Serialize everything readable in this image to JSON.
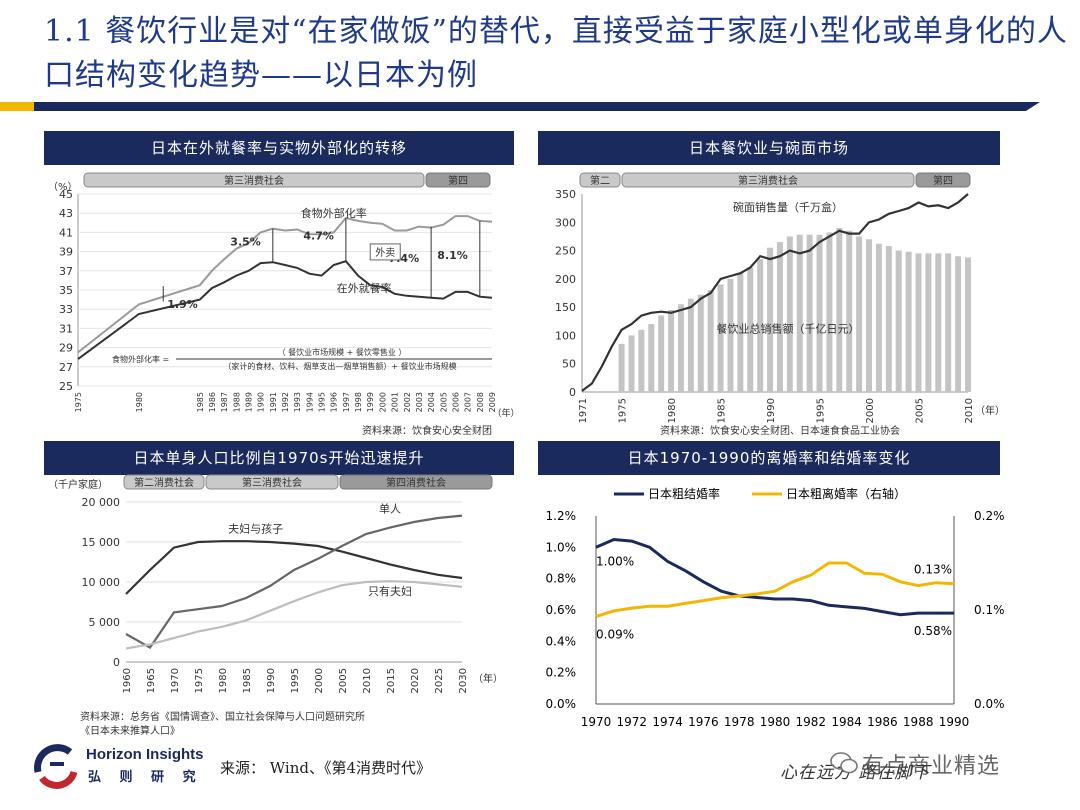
{
  "title": "1.1 餐饮行业是对“在家做饭”的替代，直接受益于家庭小型化或单身化的人口结构变化趋势——以日本为例",
  "colors": {
    "navy": "#1b2a5c",
    "gold": "#f2b705",
    "title_blue": "#1f3a8a"
  },
  "panels": {
    "p1": {
      "heading": "日本在外就餐率与实物外部化的转移"
    },
    "p2": {
      "heading": "日本餐饮业与碗面市场"
    },
    "p3": {
      "heading": "日本单身人口比例自1970s开始迅速提升"
    },
    "p4": {
      "heading": "日本1970-1990的离婚率和结婚率变化"
    }
  },
  "chart_data": [
    {
      "type": "line",
      "title": "日本在外就餐率与实物外部化的转移",
      "era_band": [
        "第三消费社会",
        "第四"
      ],
      "yunit": "（%）",
      "xunit": "（年）",
      "ylim": [
        25,
        45
      ],
      "yticks": [
        25,
        27,
        29,
        31,
        33,
        35,
        37,
        39,
        41,
        43,
        45
      ],
      "x": [
        1975,
        1980,
        1985,
        1986,
        1987,
        1988,
        1989,
        1990,
        1991,
        1992,
        1993,
        1994,
        1995,
        1996,
        1997,
        1998,
        1999,
        2000,
        2001,
        2002,
        2003,
        2004,
        2005,
        2006,
        2007,
        2008,
        2009
      ],
      "series": [
        {
          "name": "食物外部化率",
          "values": [
            28.5,
            33.5,
            35.5,
            37.0,
            38.2,
            39.3,
            39.9,
            41.0,
            41.4,
            41.2,
            41.3,
            40.8,
            40.8,
            41.0,
            42.5,
            42.2,
            42.0,
            41.9,
            41.2,
            41.2,
            41.6,
            41.5,
            41.8,
            42.7,
            42.7,
            42.2,
            42.1
          ]
        },
        {
          "name": "在外就餐率",
          "values": [
            27.8,
            32.5,
            34.0,
            35.2,
            35.8,
            36.5,
            37.0,
            37.8,
            37.9,
            37.6,
            37.3,
            36.7,
            36.5,
            37.6,
            38.0,
            36.5,
            35.5,
            35.3,
            34.6,
            34.4,
            34.3,
            34.2,
            34.1,
            34.8,
            34.8,
            34.3,
            34.2
          ]
        }
      ],
      "gap_labels": [
        "1.9%",
        "3.5%",
        "4.7%",
        "7.4%",
        "8.1%"
      ],
      "callout": "外卖",
      "formula_lines": [
        "食物外部化率 =",
        "（ 餐饮业市场规模 + 餐饮零售业 ）",
        "（家计的食材、饮料、烟草支出—烟草销售额）+ 餐饮业市场规模"
      ],
      "source": "资料来源：饮食安心安全财团"
    },
    {
      "type": "bar+line",
      "title": "日本餐饮业与碗面市场",
      "era_band": [
        "第二",
        "第三消费社会",
        "第四"
      ],
      "xunit": "（年）",
      "ylim": [
        0,
        350
      ],
      "yticks": [
        0,
        50,
        100,
        150,
        200,
        250,
        300,
        350
      ],
      "xtick_labels": [
        "1971",
        "1975",
        "1980",
        "1985",
        "1990",
        "1995",
        "2000",
        "2005",
        "2010"
      ],
      "series": [
        {
          "name": "碗面销售量（千万盒）",
          "x": [
            1971,
            1972,
            1973,
            1974,
            1975,
            1976,
            1977,
            1978,
            1979,
            1980,
            1981,
            1982,
            1983,
            1984,
            1985,
            1986,
            1987,
            1988,
            1989,
            1990,
            1991,
            1992,
            1993,
            1994,
            1995,
            1996,
            1997,
            1998,
            1999,
            2000,
            2001,
            2002,
            2003,
            2004,
            2005,
            2006,
            2007,
            2008,
            2009,
            2010
          ],
          "values": [
            2,
            15,
            45,
            80,
            110,
            120,
            135,
            140,
            142,
            140,
            145,
            150,
            165,
            175,
            200,
            205,
            210,
            220,
            240,
            235,
            240,
            250,
            245,
            250,
            265,
            275,
            285,
            280,
            280,
            300,
            305,
            315,
            320,
            325,
            335,
            328,
            330,
            325,
            335,
            350
          ]
        },
        {
          "name": "餐饮业总销售额（千亿日元）",
          "x": [
            1975,
            1976,
            1977,
            1978,
            1979,
            1980,
            1981,
            1982,
            1983,
            1984,
            1985,
            1986,
            1987,
            1988,
            1989,
            1990,
            1991,
            1992,
            1993,
            1994,
            1995,
            1996,
            1997,
            1998,
            1999,
            2000,
            2001,
            2002,
            2003,
            2004,
            2005,
            2006,
            2007,
            2008,
            2009,
            2010
          ],
          "values": [
            85,
            100,
            110,
            120,
            135,
            145,
            155,
            165,
            172,
            180,
            190,
            200,
            210,
            220,
            235,
            255,
            265,
            275,
            278,
            278,
            278,
            282,
            290,
            285,
            275,
            270,
            262,
            258,
            250,
            248,
            245,
            245,
            245,
            245,
            240,
            238
          ]
        }
      ],
      "source": "资料来源：饮食安心安全财团、日本速食食品工业协会"
    },
    {
      "type": "line",
      "title": "日本单身人口比例自1970s开始迅速提升",
      "era_band": [
        "第二消费社会",
        "第三消费社会",
        "第四消费社会"
      ],
      "yunit": "（千户家庭）",
      "xunit": "（年）",
      "ylim": [
        0,
        20000
      ],
      "yticks": [
        0,
        5000,
        10000,
        15000,
        20000
      ],
      "ytick_labels": [
        "0",
        "5 000",
        "10 000",
        "15 000",
        "20 000"
      ],
      "x": [
        1960,
        1965,
        1970,
        1975,
        1980,
        1985,
        1990,
        1995,
        2000,
        2005,
        2010,
        2015,
        2020,
        2025,
        2030
      ],
      "series": [
        {
          "name": "夫妇与孩子",
          "values": [
            8500,
            11500,
            14300,
            15000,
            15100,
            15100,
            15000,
            14800,
            14500,
            13800,
            13000,
            12200,
            11500,
            10900,
            10500
          ]
        },
        {
          "name": "单人",
          "values": [
            3500,
            1800,
            6200,
            6600,
            7000,
            8000,
            9500,
            11500,
            12900,
            14500,
            16000,
            16800,
            17500,
            18000,
            18300
          ]
        },
        {
          "name": "只有夫妇",
          "values": [
            1700,
            2200,
            3000,
            3800,
            4400,
            5200,
            6400,
            7600,
            8700,
            9600,
            10000,
            10100,
            10000,
            9700,
            9400
          ]
        }
      ],
      "source_lines": [
        "资料来源：总务省《国情调查》、国立社会保障与人口问题研究所",
        "《日本未来推算人口》"
      ]
    },
    {
      "type": "line",
      "title": "日本1970-1990的离婚率和结婚率变化",
      "x": [
        1970,
        1971,
        1972,
        1973,
        1974,
        1975,
        1976,
        1977,
        1978,
        1979,
        1980,
        1981,
        1982,
        1983,
        1984,
        1985,
        1986,
        1987,
        1988,
        1989,
        1990
      ],
      "xtick_labels": [
        "1970",
        "1972",
        "1974",
        "1976",
        "1978",
        "1980",
        "1982",
        "1984",
        "1986",
        "1988",
        "1990"
      ],
      "ylim_left": [
        0,
        1.2
      ],
      "yticks_left": [
        "0.0%",
        "0.2%",
        "0.4%",
        "0.6%",
        "0.8%",
        "1.0%",
        "1.2%"
      ],
      "ylim_right": [
        0,
        0.2
      ],
      "yticks_right": [
        "0.0%",
        "0.1%",
        "0.2%"
      ],
      "series": [
        {
          "name": "日本粗结婚率",
          "axis": "left",
          "color": "#1b2a5c",
          "values": [
            1.0,
            1.05,
            1.04,
            1.0,
            0.91,
            0.85,
            0.78,
            0.72,
            0.69,
            0.68,
            0.67,
            0.67,
            0.66,
            0.63,
            0.62,
            0.61,
            0.59,
            0.57,
            0.58,
            0.58,
            0.58
          ]
        },
        {
          "name": "日本粗离婚率（右轴）",
          "axis": "right",
          "color": "#f2b705",
          "values": [
            0.093,
            0.099,
            0.102,
            0.104,
            0.104,
            0.107,
            0.11,
            0.113,
            0.115,
            0.117,
            0.12,
            0.13,
            0.137,
            0.15,
            0.15,
            0.139,
            0.138,
            0.13,
            0.126,
            0.129,
            0.128
          ]
        }
      ],
      "data_labels": [
        "1.00%",
        "0.09%",
        "0.13%",
        "0.58%"
      ]
    }
  ],
  "footer": {
    "brand_en": "Horizon Insights",
    "brand_cn": "弘 则 研 究",
    "source": "来源： Wind、《第4消费时代》",
    "motto": "心在远方 路在脚下",
    "watermark": "有点商业精选"
  }
}
